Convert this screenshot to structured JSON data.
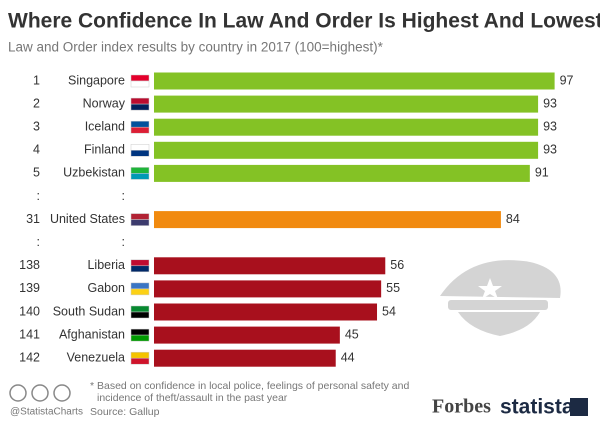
{
  "chart_data": {
    "type": "bar",
    "title": "Where Confidence In Law And Order Is Highest And Lowest",
    "subtitle": "Law and Order index results by country in 2017 (100=highest)*",
    "ranks": [
      1,
      2,
      3,
      4,
      5,
      ":",
      31,
      ":",
      138,
      139,
      140,
      141,
      142
    ],
    "categories": [
      "Singapore",
      "Norway",
      "Iceland",
      "Finland",
      "Uzbekistan",
      ":",
      "United States",
      ":",
      "Liberia",
      "Gabon",
      "South Sudan",
      "Afghanistan",
      "Venezuela"
    ],
    "values": [
      97,
      93,
      93,
      93,
      91,
      null,
      84,
      null,
      56,
      55,
      54,
      45,
      44
    ],
    "colors": [
      "#84c225",
      "#84c225",
      "#84c225",
      "#84c225",
      "#84c225",
      null,
      "#f18a0f",
      null,
      "#a8101d",
      "#a8101d",
      "#a8101d",
      "#a8101d",
      "#a8101d"
    ],
    "xlim": [
      0,
      100
    ],
    "footnote": "* Based on confidence in local police, feelings of personal safety and incidence of theft/assault in the past year",
    "source": "Source: Gallup",
    "handle": "@StatistaCharts",
    "logo1": "Forbes",
    "logo2": "statista"
  }
}
